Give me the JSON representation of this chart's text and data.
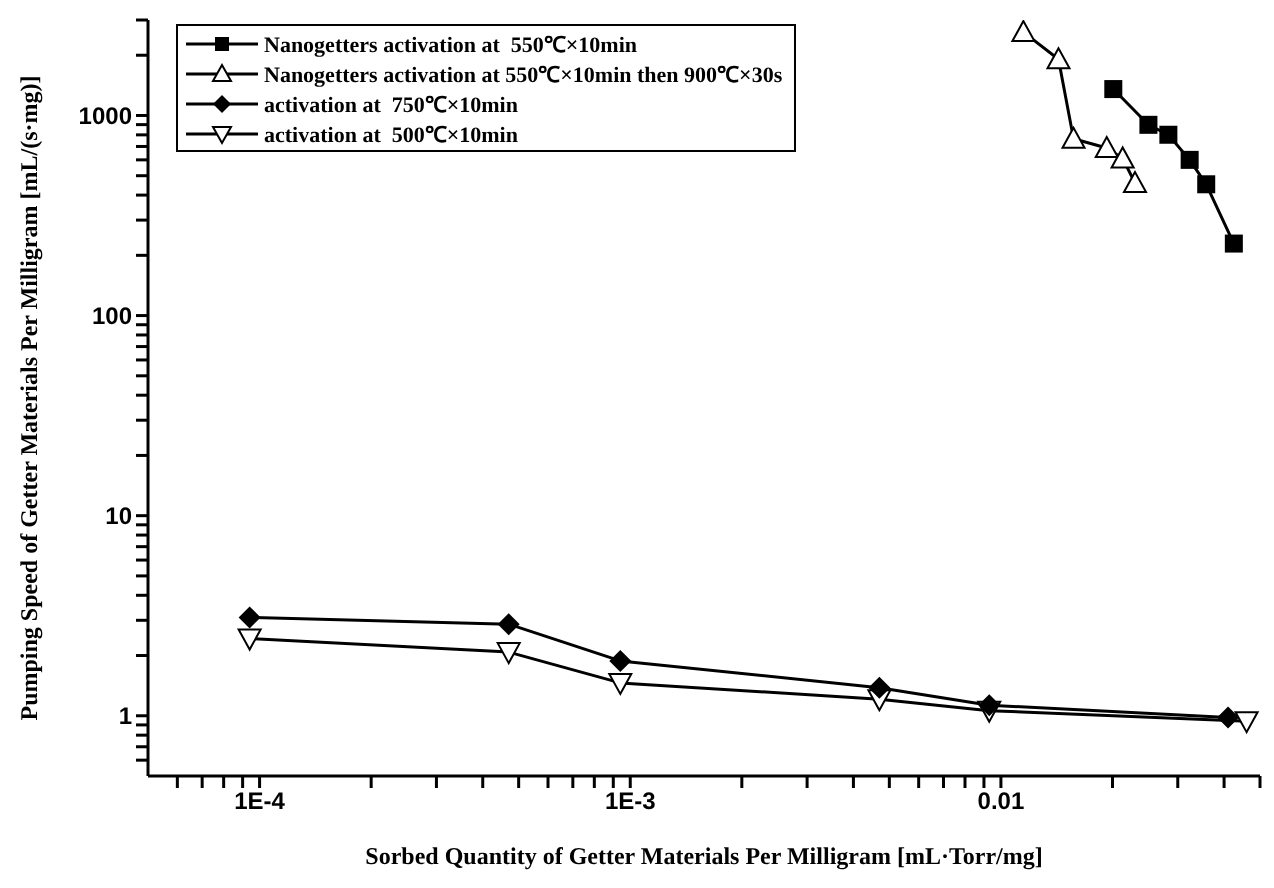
{
  "chart_data": {
    "type": "line",
    "xlabel": "Sorbed Quantity of Getter Materials  Per Milligram          [mL·Torr/mg]",
    "ylabel": "Pumping Speed of Getter Materials  Per Milligram    [mL/(s·mg)]",
    "log": "xy",
    "xlim": [
      5e-05,
      0.05
    ],
    "ylim": [
      0.5,
      3000
    ],
    "xticks": [
      {
        "value": 6e-05,
        "label": null
      },
      {
        "value": 7e-05,
        "label": null
      },
      {
        "value": 8e-05,
        "label": null
      },
      {
        "value": 9e-05,
        "label": null
      },
      {
        "value": 0.0001,
        "label": "1E-4"
      },
      {
        "value": 0.0002,
        "label": null
      },
      {
        "value": 0.0003,
        "label": null
      },
      {
        "value": 0.0004,
        "label": null
      },
      {
        "value": 0.0005,
        "label": null
      },
      {
        "value": 0.0006,
        "label": null
      },
      {
        "value": 0.0007,
        "label": null
      },
      {
        "value": 0.0008,
        "label": null
      },
      {
        "value": 0.0009,
        "label": null
      },
      {
        "value": 0.001,
        "label": "1E-3"
      },
      {
        "value": 0.002,
        "label": null
      },
      {
        "value": 0.003,
        "label": null
      },
      {
        "value": 0.004,
        "label": null
      },
      {
        "value": 0.005,
        "label": null
      },
      {
        "value": 0.006,
        "label": null
      },
      {
        "value": 0.007,
        "label": null
      },
      {
        "value": 0.008,
        "label": null
      },
      {
        "value": 0.009,
        "label": null
      },
      0.01,
      {
        "value": 0.02,
        "label": null
      },
      {
        "value": 0.03,
        "label": null
      },
      {
        "value": 0.04,
        "label": null
      },
      {
        "value": 0.05,
        "label": null
      }
    ],
    "yticks": [
      {
        "value": 0.6,
        "label": null
      },
      {
        "value": 0.7,
        "label": null
      },
      {
        "value": 0.8,
        "label": null
      },
      {
        "value": 0.9,
        "label": null
      },
      1,
      {
        "value": 2,
        "label": null
      },
      {
        "value": 3,
        "label": null
      },
      {
        "value": 4,
        "label": null
      },
      {
        "value": 5,
        "label": null
      },
      {
        "value": 6,
        "label": null
      },
      {
        "value": 7,
        "label": null
      },
      {
        "value": 8,
        "label": null
      },
      {
        "value": 9,
        "label": null
      },
      10,
      {
        "value": 20,
        "label": null
      },
      {
        "value": 30,
        "label": null
      },
      {
        "value": 40,
        "label": null
      },
      {
        "value": 50,
        "label": null
      },
      {
        "value": 60,
        "label": null
      },
      {
        "value": 70,
        "label": null
      },
      {
        "value": 80,
        "label": null
      },
      {
        "value": 90,
        "label": null
      },
      100,
      {
        "value": 200,
        "label": null
      },
      {
        "value": 300,
        "label": null
      },
      {
        "value": 400,
        "label": null
      },
      {
        "value": 500,
        "label": null
      },
      {
        "value": 600,
        "label": null
      },
      {
        "value": 700,
        "label": null
      },
      {
        "value": 800,
        "label": null
      },
      {
        "value": 900,
        "label": null
      },
      1000,
      {
        "value": 2000,
        "label": null
      },
      {
        "value": 3000,
        "label": null
      }
    ],
    "grid": false,
    "legend": "top left",
    "line_style": "solid",
    "series": [
      {
        "name": "Nanogetters activation at  550℃×10min",
        "color": "#000000",
        "marker": "square",
        "x": [
          0.0201,
          0.025,
          0.0283,
          0.0323,
          0.0358,
          0.0425
        ],
        "values": [
          1355,
          898,
          801,
          600,
          453,
          229
        ]
      },
      {
        "name": "Nanogetters activation at 550℃×10min then 900℃×30s",
        "color": "#000000",
        "marker": "triangle",
        "x": [
          0.0115,
          0.0143,
          0.0157,
          0.0193,
          0.0213,
          0.023
        ],
        "values": [
          2610,
          1910,
          765,
          688,
          610,
          460
        ]
      },
      {
        "name": "activation at  750℃×10min",
        "color": "#000000",
        "marker": "diamond",
        "x": [
          9.4e-05,
          0.00047,
          0.00094,
          0.0047,
          0.0093,
          0.041
        ],
        "values": [
          3.1,
          2.87,
          1.88,
          1.38,
          1.13,
          0.98
        ]
      },
      {
        "name": "activation at  500℃×10min",
        "color": "#000000",
        "marker": "triangle-down",
        "x": [
          9.4e-05,
          0.00047,
          0.00094,
          0.0047,
          0.0093,
          0.046
        ],
        "values": [
          2.43,
          2.08,
          1.46,
          1.21,
          1.06,
          0.94
        ]
      }
    ]
  }
}
